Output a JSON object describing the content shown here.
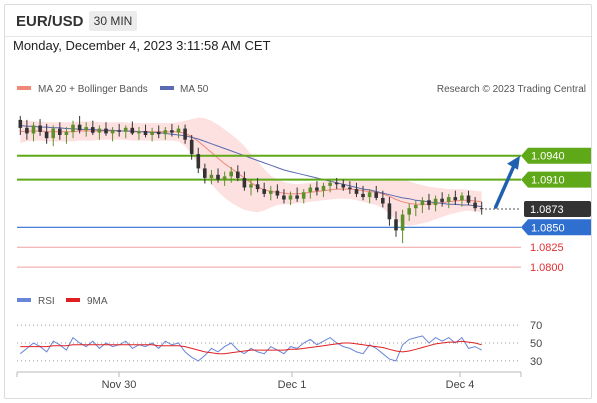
{
  "header": {
    "pair": "EUR/USD",
    "interval": "30 MIN"
  },
  "datetime": "Monday, December 4, 2023 3:11:58 AM CET",
  "legend": {
    "ma20": "MA 20 + Bollinger Bands",
    "ma50": "MA 50",
    "credit": "Research © 2023 Trading Central"
  },
  "rsi_legend": {
    "rsi": "RSI",
    "ma9": "9MA"
  },
  "colors": {
    "up": "#5f8f2a",
    "down": "#333333",
    "resistance": "#5fa818",
    "pivot": "#2f6fd0",
    "support": "#e03030",
    "ma20": "#f08878",
    "ma50": "#5a6ab0",
    "bands": "#fde0e0",
    "rsi": "#6a86d8",
    "rsi_ma": "#e02020",
    "arrow": "#2060b0",
    "current": "#333333"
  },
  "chart_data": [
    {
      "type": "candlestick",
      "title": "EUR/USD",
      "interval": "30 MIN",
      "x_ticks": [
        "Nov 30",
        "Dec 1",
        "Dec 4"
      ],
      "levels": [
        {
          "label": "1.0940",
          "value": 1.094,
          "role": "resistance"
        },
        {
          "label": "1.0910",
          "value": 1.091,
          "role": "resistance"
        },
        {
          "label": "1.0873",
          "value": 1.0873,
          "role": "current"
        },
        {
          "label": "1.0850",
          "value": 1.085,
          "role": "pivot"
        },
        {
          "label": "1.0825",
          "value": 1.0825,
          "role": "support"
        },
        {
          "label": "1.0800",
          "value": 1.08,
          "role": "support"
        }
      ],
      "ylim": [
        1.078,
        1.101
      ],
      "ohlc": [
        [
          1.0985,
          1.099,
          1.0966,
          1.0975
        ],
        [
          1.0975,
          1.0985,
          1.096,
          1.0968
        ],
        [
          1.0968,
          1.0982,
          1.0958,
          1.0978
        ],
        [
          1.0978,
          1.0986,
          1.0965,
          1.097
        ],
        [
          1.097,
          1.098,
          1.0955,
          1.0962
        ],
        [
          1.0962,
          1.0978,
          1.0952,
          1.0974
        ],
        [
          1.0974,
          1.0982,
          1.096,
          1.0966
        ],
        [
          1.0966,
          1.0976,
          1.0955,
          1.097
        ],
        [
          1.097,
          1.0984,
          1.0962,
          1.0979
        ],
        [
          1.0979,
          1.099,
          1.0968,
          1.0972
        ],
        [
          1.0972,
          1.0982,
          1.0964,
          1.0976
        ],
        [
          1.0976,
          1.0984,
          1.0966,
          1.0969
        ],
        [
          1.0969,
          1.0978,
          1.096,
          1.0974
        ],
        [
          1.0974,
          1.0982,
          1.0965,
          1.0968
        ],
        [
          1.0968,
          1.0976,
          1.0958,
          1.0972
        ],
        [
          1.0972,
          1.098,
          1.0964,
          1.097
        ],
        [
          1.097,
          1.0978,
          1.0962,
          1.0975
        ],
        [
          1.0975,
          1.0983,
          1.0966,
          1.0968
        ],
        [
          1.0968,
          1.0976,
          1.096,
          1.0971
        ],
        [
          1.0971,
          1.0979,
          1.0963,
          1.0966
        ],
        [
          1.0966,
          1.0975,
          1.0958,
          1.097
        ],
        [
          1.097,
          1.0978,
          1.0962,
          1.0967
        ],
        [
          1.0967,
          1.0976,
          1.096,
          1.0972
        ],
        [
          1.0972,
          1.098,
          1.0964,
          1.0969
        ],
        [
          1.0969,
          1.0978,
          1.0962,
          1.0974
        ],
        [
          1.0974,
          1.0979,
          1.0955,
          1.096
        ],
        [
          1.096,
          1.0966,
          1.0935,
          1.0942
        ],
        [
          1.0942,
          1.095,
          1.0918,
          1.0924
        ],
        [
          1.0924,
          1.093,
          1.0905,
          1.0912
        ],
        [
          1.0912,
          1.0922,
          1.0904,
          1.0916
        ],
        [
          1.0916,
          1.0924,
          1.0906,
          1.091
        ],
        [
          1.091,
          1.092,
          1.0902,
          1.0914
        ],
        [
          1.0914,
          1.0926,
          1.0906,
          1.092
        ],
        [
          1.092,
          1.0928,
          1.0908,
          1.0912
        ],
        [
          1.0912,
          1.092,
          1.0896,
          1.09
        ],
        [
          1.09,
          1.091,
          1.089,
          1.0904
        ],
        [
          1.0904,
          1.0912,
          1.0894,
          1.0898
        ],
        [
          1.0898,
          1.0906,
          1.0888,
          1.0892
        ],
        [
          1.0892,
          1.0902,
          1.0884,
          1.0896
        ],
        [
          1.0896,
          1.0904,
          1.0886,
          1.089
        ],
        [
          1.089,
          1.0898,
          1.088,
          1.0885
        ],
        [
          1.0885,
          1.0895,
          1.0878,
          1.089
        ],
        [
          1.089,
          1.09,
          1.0882,
          1.0886
        ],
        [
          1.0886,
          1.0898,
          1.088,
          1.0894
        ],
        [
          1.0894,
          1.0904,
          1.0886,
          1.09
        ],
        [
          1.09,
          1.0908,
          1.089,
          1.0896
        ],
        [
          1.0896,
          1.0906,
          1.0888,
          1.0902
        ],
        [
          1.0902,
          1.091,
          1.0894,
          1.0906
        ],
        [
          1.0906,
          1.0912,
          1.0898,
          1.0904
        ],
        [
          1.0904,
          1.091,
          1.0896,
          1.09
        ],
        [
          1.09,
          1.0908,
          1.0892,
          1.0898
        ],
        [
          1.0898,
          1.0906,
          1.0888,
          1.0892
        ],
        [
          1.0892,
          1.0902,
          1.0884,
          1.0888
        ],
        [
          1.0888,
          1.0898,
          1.088,
          1.0894
        ],
        [
          1.0894,
          1.0902,
          1.0884,
          1.0887
        ],
        [
          1.0887,
          1.0896,
          1.0875,
          1.088
        ],
        [
          1.088,
          1.0888,
          1.0852,
          1.086
        ],
        [
          1.086,
          1.087,
          1.0838,
          1.0846
        ],
        [
          1.0846,
          1.0872,
          1.083,
          1.0866
        ],
        [
          1.0866,
          1.088,
          1.0858,
          1.0874
        ],
        [
          1.0874,
          1.0884,
          1.0864,
          1.0878
        ],
        [
          1.0878,
          1.0888,
          1.0868,
          1.0884
        ],
        [
          1.0884,
          1.0892,
          1.0872,
          1.0878
        ],
        [
          1.0878,
          1.089,
          1.087,
          1.0886
        ],
        [
          1.0886,
          1.0894,
          1.0876,
          1.0882
        ],
        [
          1.0882,
          1.0892,
          1.0874,
          1.0888
        ],
        [
          1.0888,
          1.0896,
          1.0878,
          1.0884
        ],
        [
          1.0884,
          1.0894,
          1.0876,
          1.089
        ],
        [
          1.089,
          1.0896,
          1.0878,
          1.0881
        ],
        [
          1.0881,
          1.0888,
          1.087,
          1.0874
        ],
        [
          1.0874,
          1.0882,
          1.0866,
          1.0873
        ]
      ],
      "ma20": [
        1.097,
        1.0971,
        1.0971,
        1.0971,
        1.097,
        1.097,
        1.097,
        1.097,
        1.097,
        1.0971,
        1.0971,
        1.0971,
        1.0971,
        1.0971,
        1.0971,
        1.0971,
        1.0971,
        1.097,
        1.097,
        1.097,
        1.097,
        1.097,
        1.097,
        1.097,
        1.097,
        1.0968,
        1.0964,
        1.0958,
        1.0951,
        1.0944,
        1.0937,
        1.093,
        1.0924,
        1.0918,
        1.0912,
        1.0906,
        1.0901,
        1.0897,
        1.0895,
        1.0894,
        1.0893,
        1.0892,
        1.0892,
        1.0893,
        1.0894,
        1.0895,
        1.0896,
        1.0897,
        1.0898,
        1.0898,
        1.0898,
        1.0897,
        1.0896,
        1.0895,
        1.0894,
        1.0892,
        1.0889,
        1.0885,
        1.0882,
        1.088,
        1.0879,
        1.0879,
        1.0879,
        1.088,
        1.0881,
        1.0882,
        1.0883,
        1.0884,
        1.0884,
        1.0883,
        1.0882
      ],
      "ma50": [
        1.0978,
        1.0977,
        1.0977,
        1.0976,
        1.0976,
        1.0975,
        1.0975,
        1.0974,
        1.0974,
        1.0973,
        1.0973,
        1.0973,
        1.0972,
        1.0972,
        1.0972,
        1.0971,
        1.0971,
        1.0971,
        1.097,
        1.097,
        1.0969,
        1.0969,
        1.0968,
        1.0967,
        1.0966,
        1.0965,
        1.0963,
        1.0961,
        1.0958,
        1.0955,
        1.0952,
        1.0949,
        1.0946,
        1.0943,
        1.094,
        1.0937,
        1.0934,
        1.0931,
        1.0928,
        1.0925,
        1.0922,
        1.092,
        1.0918,
        1.0916,
        1.0914,
        1.0912,
        1.091,
        1.0908,
        1.0906,
        1.0904,
        1.0902,
        1.09,
        1.0898,
        1.0897,
        1.0895,
        1.0893,
        1.0891,
        1.0889,
        1.0887,
        1.0886,
        1.0884,
        1.0883,
        1.0882,
        1.0881,
        1.088,
        1.0879,
        1.0879,
        1.0878,
        1.0878,
        1.0877,
        1.0876
      ],
      "bollinger_width": [
        0.0014,
        0.0013,
        0.0012,
        0.0012,
        0.0012,
        0.0012,
        0.0012,
        0.0012,
        0.0012,
        0.0012,
        0.0012,
        0.0012,
        0.0011,
        0.0011,
        0.0011,
        0.0011,
        0.0011,
        0.0011,
        0.0011,
        0.0011,
        0.0011,
        0.0011,
        0.0011,
        0.0011,
        0.0012,
        0.0016,
        0.0022,
        0.003,
        0.0036,
        0.004,
        0.0042,
        0.0043,
        0.0043,
        0.0042,
        0.004,
        0.0036,
        0.0032,
        0.0026,
        0.002,
        0.0016,
        0.0014,
        0.0013,
        0.0012,
        0.0012,
        0.0012,
        0.0012,
        0.0012,
        0.0012,
        0.0012,
        0.0012,
        0.0012,
        0.0013,
        0.0014,
        0.0015,
        0.0016,
        0.0018,
        0.0022,
        0.0026,
        0.0028,
        0.0028,
        0.0026,
        0.0024,
        0.0022,
        0.002,
        0.0018,
        0.0016,
        0.0015,
        0.0014,
        0.0013,
        0.0013,
        0.0013
      ],
      "rsi": {
        "ticks": [
          30,
          50,
          70
        ],
        "ylim": [
          22,
          78
        ],
        "rsi": [
          38,
          44,
          50,
          46,
          40,
          52,
          48,
          42,
          56,
          50,
          46,
          52,
          44,
          50,
          46,
          48,
          52,
          44,
          48,
          46,
          50,
          44,
          52,
          48,
          50,
          40,
          34,
          30,
          36,
          44,
          40,
          46,
          50,
          42,
          38,
          44,
          40,
          38,
          46,
          42,
          38,
          46,
          44,
          50,
          54,
          48,
          52,
          56,
          50,
          46,
          44,
          40,
          38,
          48,
          44,
          38,
          32,
          30,
          48,
          54,
          56,
          58,
          50,
          56,
          52,
          56,
          50,
          56,
          44,
          46,
          42
        ],
        "ma9": [
          46,
          46,
          46,
          46,
          46,
          47,
          47,
          47,
          48,
          48,
          48,
          48,
          48,
          48,
          48,
          48,
          48,
          48,
          48,
          48,
          48,
          47,
          47,
          47,
          47,
          46,
          44,
          42,
          40,
          39,
          38,
          38,
          39,
          40,
          41,
          42,
          42,
          42,
          42,
          42,
          42,
          43,
          43,
          44,
          45,
          46,
          47,
          48,
          49,
          50,
          50,
          49,
          48,
          47,
          46,
          45,
          43,
          41,
          40,
          41,
          43,
          45,
          47,
          49,
          50,
          51,
          51,
          52,
          51,
          50,
          48
        ]
      }
    }
  ]
}
